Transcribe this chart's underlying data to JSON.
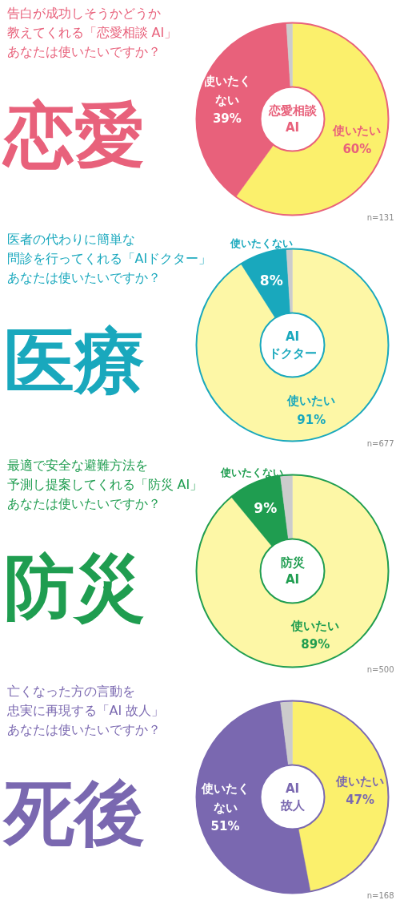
{
  "chart_data": [
    {
      "type": "donut",
      "title": "告白が成功しそうかどうか",
      "subtitle": "教えてくれる「恋愛相談 AI」",
      "categories": [
        "使いたい",
        "使いたくない",
        null
      ],
      "values": [
        60,
        39,
        1
      ],
      "colors": [
        "#fbf06c",
        "#e8617b",
        "#cccccc"
      ],
      "value_labels": [
        "60%",
        "39%",
        null
      ],
      "annotations": [
        "あなたは使いたいですか？",
        "恋愛",
        "恋愛相談\nAI",
        "n=131"
      ]
    },
    {
      "type": "donut",
      "title": "医者の代わりに簡単な",
      "subtitle": "問診を行ってくれる「AIドクター」",
      "categories": [
        "使いたい",
        "使いたくない",
        null
      ],
      "values": [
        91,
        8,
        1
      ],
      "colors": [
        "#fdf7a6",
        "#19a8bd",
        "#cccccc"
      ],
      "value_labels": [
        "91%",
        "8%",
        null
      ],
      "annotations": [
        "あなたは使いたいですか？",
        "医療",
        "AI\nドクター",
        "n=677"
      ]
    },
    {
      "type": "donut",
      "title": "最適で安全な避難方法を",
      "subtitle": "予測し提案してくれる「防災 AI」",
      "categories": [
        "使いたい",
        "使いたくない",
        null
      ],
      "values": [
        89,
        9,
        2
      ],
      "colors": [
        "#fdf7a6",
        "#1f9d50",
        "#cccccc"
      ],
      "value_labels": [
        "89%",
        "9%",
        null
      ],
      "annotations": [
        "あなたは使いたいですか？",
        "防災",
        "防災\nAI",
        "n=500"
      ]
    },
    {
      "type": "donut",
      "title": "亡くなった方の言動を",
      "subtitle": "忠実に再現する「AI 故人」",
      "categories": [
        "使いたい",
        "使いたくない",
        null
      ],
      "values": [
        47,
        51,
        2
      ],
      "colors": [
        "#fbf06c",
        "#7a68b0",
        "#cccccc"
      ],
      "value_labels": [
        "47%",
        "51%",
        null
      ],
      "annotations": [
        "あなたは使いたいですか？",
        "死後",
        "AI\n故人",
        "n=168"
      ]
    }
  ]
}
